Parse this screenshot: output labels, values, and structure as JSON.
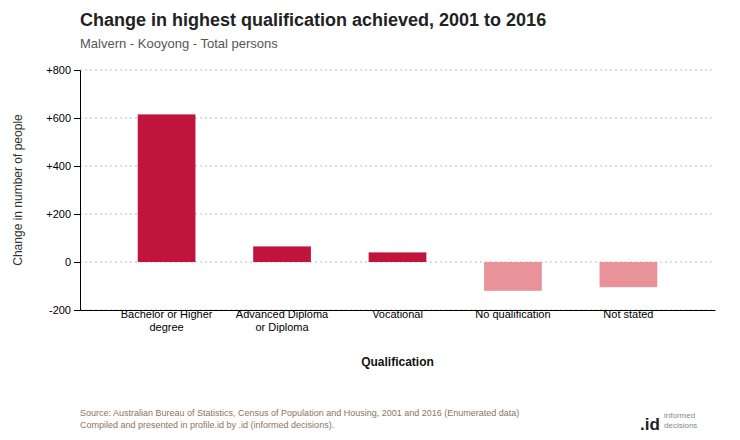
{
  "chart_data": {
    "type": "bar",
    "title": "Change in highest qualification achieved, 2001 to 2016",
    "subtitle": "Malvern - Kooyong - Total persons",
    "categories": [
      "Bachelor or Higher\ndegree",
      "Advanced Diploma\nor Diploma",
      "Vocational",
      "No qualification",
      "Not stated"
    ],
    "values": [
      615,
      65,
      40,
      -120,
      -105
    ],
    "colors": [
      "#c0143c",
      "#c0143c",
      "#c0143c",
      "#e8929a",
      "#e8929a"
    ],
    "ylabel": "Change in number of people",
    "xlabel": "Qualification",
    "ylim": [
      -200,
      800
    ],
    "yticks": [
      -200,
      0,
      {
        "value": 200,
        "label": "+200"
      },
      {
        "value": 400,
        "label": "+400"
      },
      {
        "value": 600,
        "label": "+600"
      },
      {
        "value": 800,
        "label": "+800"
      }
    ],
    "grid": true,
    "source": "Source: Australian Bureau of Statistics, Census of Population and Housing, 2001 and 2016 (Enumerated data)\nCompiled and presented in profile.id by .id (informed decisions).",
    "annotations": [
      ".id",
      "informed\ndecisions"
    ]
  }
}
